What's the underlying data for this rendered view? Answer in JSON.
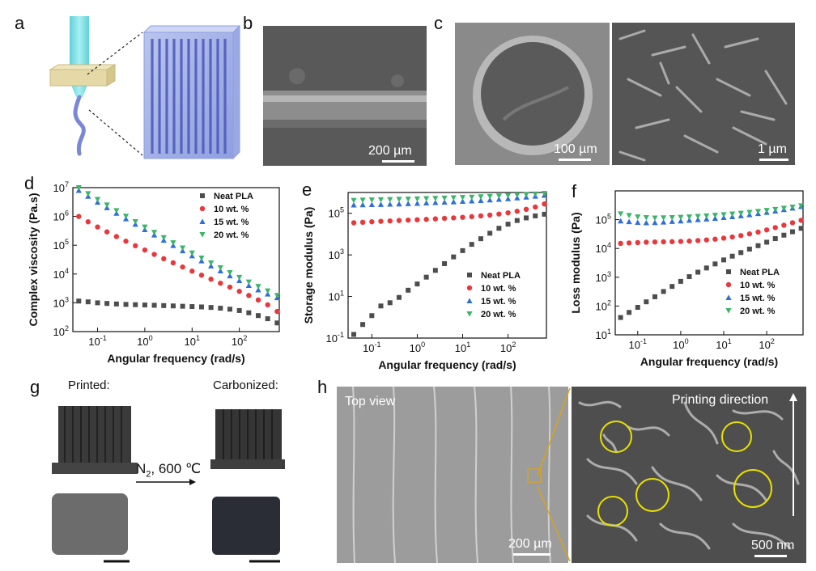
{
  "panels": {
    "a": {
      "letter": "a"
    },
    "b": {
      "letter": "b",
      "scale": "200 µm"
    },
    "c": {
      "letter": "c",
      "scale_left": "100 µm",
      "scale_right": "1 µm"
    },
    "d": {
      "letter": "d"
    },
    "e": {
      "letter": "e"
    },
    "f": {
      "letter": "f"
    },
    "g": {
      "letter": "g",
      "printed": "Printed:",
      "carbonized": "Carbonized:",
      "arrow_text": "N",
      "arrow_sub": "2",
      "arrow_text2": ", 600 ℃"
    },
    "h": {
      "letter": "h",
      "top_view": "Top view",
      "printing_direction": "Printing direction",
      "scale_left": "200 µm",
      "scale_right": "500 nm"
    }
  },
  "colors": {
    "neat": "#4d4d4d",
    "wt10": "#e8383d",
    "wt15": "#2f6fd8",
    "wt20": "#3bb56a",
    "ink_blue": "#7a86d8",
    "nozzle": "#7fe3e8",
    "plate": "#e5d9a8",
    "circle": "#e8e000",
    "zoom_line": "#d9a21f"
  },
  "chart_data": [
    {
      "id": "d",
      "type": "scatter",
      "xlabel": "Angular frequency (rad/s)",
      "ylabel": "Complex viscosity (Pa.s)",
      "xscale": "log",
      "yscale": "log",
      "xlim": [
        0.03,
        700
      ],
      "ylim": [
        100,
        10000000
      ],
      "xticks": [
        0.1,
        1,
        10,
        100
      ],
      "xtick_labels": [
        [
          "10",
          "-1"
        ],
        [
          "10",
          "0"
        ],
        [
          "10",
          "1"
        ],
        [
          "10",
          "2"
        ]
      ],
      "yticks": [
        100,
        1000,
        10000,
        100000,
        1000000,
        10000000
      ],
      "ytick_labels": [
        [
          "10",
          "2"
        ],
        [
          "10",
          "3"
        ],
        [
          "10",
          "4"
        ],
        [
          "10",
          "5"
        ],
        [
          "10",
          "6"
        ],
        [
          "10",
          "7"
        ]
      ],
      "legend_position": "top-right",
      "x": [
        0.04,
        0.063,
        0.1,
        0.158,
        0.251,
        0.398,
        0.631,
        1,
        1.585,
        2.512,
        3.981,
        6.31,
        10,
        15.85,
        25.12,
        39.81,
        63.1,
        100,
        158.5,
        251.2,
        398.1,
        631
      ],
      "series": [
        {
          "name": "Neat PLA",
          "marker": "square",
          "values": [
            1150,
            1080,
            1000,
            950,
            910,
            880,
            860,
            840,
            820,
            800,
            780,
            760,
            740,
            720,
            690,
            650,
            600,
            540,
            450,
            360,
            280,
            200
          ]
        },
        {
          "name": "10 wt. %",
          "marker": "circle",
          "values": [
            1000000,
            650000,
            430000,
            290000,
            200000,
            138000,
            96000,
            68000,
            48000,
            34000,
            24500,
            17500,
            12600,
            9100,
            6600,
            4800,
            3500,
            2500,
            1800,
            1250,
            850,
            500
          ]
        },
        {
          "name": "15 wt. %",
          "marker": "triangle-up",
          "values": [
            8000000,
            5000000,
            3100000,
            2000000,
            1280000,
            820000,
            530000,
            345000,
            225000,
            148000,
            97000,
            64000,
            42500,
            28500,
            19000,
            12800,
            8600,
            5900,
            4000,
            2800,
            2000,
            1500
          ]
        },
        {
          "name": "20 wt. %",
          "marker": "triangle-down",
          "values": [
            10000000,
            6200000,
            3900000,
            2500000,
            1600000,
            1020000,
            660000,
            430000,
            280000,
            185000,
            122000,
            81000,
            54000,
            36000,
            24500,
            16500,
            11200,
            7700,
            5300,
            3700,
            2600,
            1800
          ]
        }
      ]
    },
    {
      "id": "e",
      "type": "scatter",
      "xlabel": "Angular frequency (rad/s)",
      "ylabel": "Storage modulus (Pa)",
      "xscale": "log",
      "yscale": "log",
      "xlim": [
        0.03,
        700
      ],
      "ylim": [
        0.1,
        1000000
      ],
      "xticks": [
        0.1,
        1,
        10,
        100
      ],
      "xtick_labels": [
        [
          "10",
          "-1"
        ],
        [
          "10",
          "0"
        ],
        [
          "10",
          "1"
        ],
        [
          "10",
          "2"
        ]
      ],
      "yticks": [
        0.1,
        10,
        1000,
        100000
      ],
      "ytick_labels": [
        [
          "10",
          "-1"
        ],
        [
          "10",
          "1"
        ],
        [
          "10",
          "3"
        ],
        [
          "10",
          "5"
        ]
      ],
      "legend_position": "bottom-right",
      "x": [
        0.04,
        0.063,
        0.1,
        0.158,
        0.251,
        0.398,
        0.631,
        1,
        1.585,
        2.512,
        3.981,
        6.31,
        10,
        15.85,
        25.12,
        39.81,
        63.1,
        100,
        158.5,
        251.2,
        398.1,
        631
      ],
      "series": [
        {
          "name": "Neat PLA",
          "marker": "square",
          "values": [
            0.15,
            0.45,
            1.2,
            3.5,
            5,
            9,
            20,
            40,
            85,
            180,
            380,
            800,
            1600,
            3200,
            6000,
            11000,
            19000,
            30000,
            45000,
            60000,
            75000,
            90000
          ]
        },
        {
          "name": "10 wt. %",
          "marker": "circle",
          "values": [
            35000,
            37000,
            39000,
            41000,
            43000,
            45000,
            47000,
            49000,
            51000,
            54000,
            57000,
            60000,
            64000,
            69000,
            75000,
            82000,
            92000,
            105000,
            125000,
            155000,
            200000,
            280000
          ]
        },
        {
          "name": "15 wt. %",
          "marker": "triangle-up",
          "values": [
            250000,
            255000,
            260000,
            265000,
            272000,
            280000,
            290000,
            300000,
            312000,
            325000,
            340000,
            355000,
            372000,
            390000,
            410000,
            435000,
            465000,
            500000,
            545000,
            600000,
            660000,
            730000
          ]
        },
        {
          "name": "20 wt. %",
          "marker": "triangle-down",
          "values": [
            420000,
            430000,
            440000,
            450000,
            460000,
            470000,
            482000,
            495000,
            510000,
            525000,
            540000,
            560000,
            580000,
            600000,
            625000,
            650000,
            680000,
            715000,
            755000,
            800000,
            850000,
            900000
          ]
        }
      ]
    },
    {
      "id": "f",
      "type": "scatter",
      "xlabel": "Angular frequency (rad/s)",
      "ylabel": "Loss modulus (Pa)",
      "xscale": "log",
      "yscale": "log",
      "xlim": [
        0.03,
        700
      ],
      "ylim": [
        10,
        1000000
      ],
      "xticks": [
        0.1,
        1,
        10,
        100
      ],
      "xtick_labels": [
        [
          "10",
          "-1"
        ],
        [
          "10",
          "0"
        ],
        [
          "10",
          "1"
        ],
        [
          "10",
          "2"
        ]
      ],
      "yticks": [
        10,
        100,
        1000,
        10000,
        100000
      ],
      "ytick_labels": [
        [
          "10",
          "1"
        ],
        [
          "10",
          "2"
        ],
        [
          "10",
          "3"
        ],
        [
          "10",
          "4"
        ],
        [
          "10",
          "5"
        ]
      ],
      "legend_position": "bottom-right",
      "x": [
        0.04,
        0.063,
        0.1,
        0.158,
        0.251,
        0.398,
        0.631,
        1,
        1.585,
        2.512,
        3.981,
        6.31,
        10,
        15.85,
        25.12,
        39.81,
        63.1,
        100,
        158.5,
        251.2,
        398.1,
        631
      ],
      "series": [
        {
          "name": "Neat PLA",
          "marker": "square",
          "values": [
            40,
            60,
            90,
            140,
            210,
            320,
            480,
            720,
            1050,
            1500,
            2100,
            2900,
            4000,
            5400,
            7200,
            9500,
            12500,
            16500,
            22000,
            29000,
            38000,
            50000
          ]
        },
        {
          "name": "10 wt. %",
          "marker": "circle",
          "values": [
            15000,
            15500,
            16000,
            16500,
            16800,
            17000,
            17200,
            17500,
            18000,
            18800,
            19800,
            21000,
            22800,
            25000,
            28000,
            32000,
            37000,
            44000,
            53000,
            64000,
            78000,
            95000
          ]
        },
        {
          "name": "15 wt. %",
          "marker": "triangle-up",
          "values": [
            90000,
            85000,
            80000,
            78000,
            79000,
            82000,
            86000,
            90000,
            95000,
            100000,
            105000,
            110000,
            118000,
            126000,
            136000,
            148000,
            162000,
            178000,
            198000,
            222000,
            250000,
            285000
          ]
        },
        {
          "name": "20 wt. %",
          "marker": "triangle-down",
          "values": [
            160000,
            140000,
            125000,
            118000,
            115000,
            116000,
            118000,
            121000,
            125000,
            130000,
            136000,
            142000,
            150000,
            158000,
            168000,
            180000,
            194000,
            210000,
            228000,
            250000,
            275000,
            305000
          ]
        }
      ]
    }
  ]
}
